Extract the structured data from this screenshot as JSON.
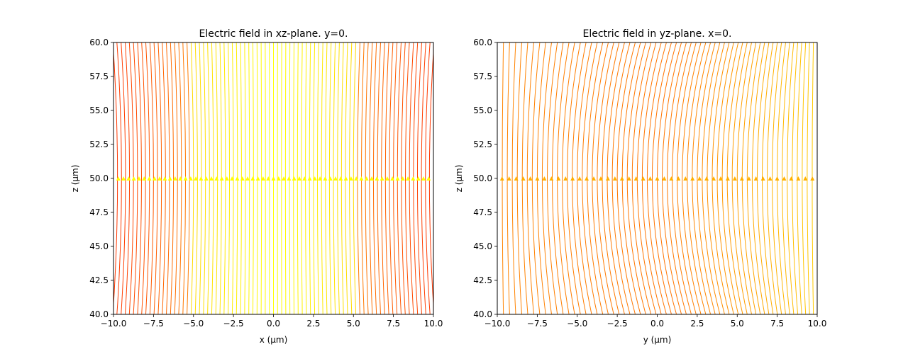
{
  "chart_data": [
    {
      "type": "streamplot",
      "title": "Electric field in xz-plane. y=0.",
      "xlabel": "x (μm)",
      "ylabel": "z (μm)",
      "xlim": [
        -10,
        10
      ],
      "ylim": [
        40,
        60
      ],
      "xticks": [
        -10,
        -7.5,
        -5,
        -2.5,
        0,
        2.5,
        5,
        7.5,
        10
      ],
      "yticks": [
        40,
        42.5,
        45,
        47.5,
        50,
        52.5,
        55,
        57.5,
        60
      ],
      "xtick_labels": [
        "−10.0",
        "−7.5",
        "−5.0",
        "−2.5",
        "0.0",
        "2.5",
        "5.0",
        "7.5",
        "10.0"
      ],
      "ytick_labels": [
        "40.0",
        "42.5",
        "45.0",
        "47.5",
        "50.0",
        "52.5",
        "55.0",
        "57.5",
        "60.0"
      ],
      "field_focus_z": 50,
      "colormap": "autumn",
      "grid": false
    },
    {
      "type": "streamplot",
      "title": "Electric field in yz-plane. x=0.",
      "xlabel": "y (μm)",
      "ylabel": "z (μm)",
      "xlim": [
        -10,
        10
      ],
      "ylim": [
        40,
        60
      ],
      "xticks": [
        -10,
        -7.5,
        -5,
        -2.5,
        0,
        2.5,
        5,
        7.5,
        10
      ],
      "yticks": [
        40,
        42.5,
        45,
        47.5,
        50,
        52.5,
        55,
        57.5,
        60
      ],
      "xtick_labels": [
        "−10.0",
        "−7.5",
        "−5.0",
        "−2.5",
        "0.0",
        "2.5",
        "5.0",
        "7.5",
        "10.0"
      ],
      "ytick_labels": [
        "40.0",
        "42.5",
        "45.0",
        "47.5",
        "50.0",
        "52.5",
        "55.0",
        "57.5",
        "60.0"
      ],
      "field_focus_z": 50,
      "colormap": "autumn",
      "grid": false
    }
  ]
}
